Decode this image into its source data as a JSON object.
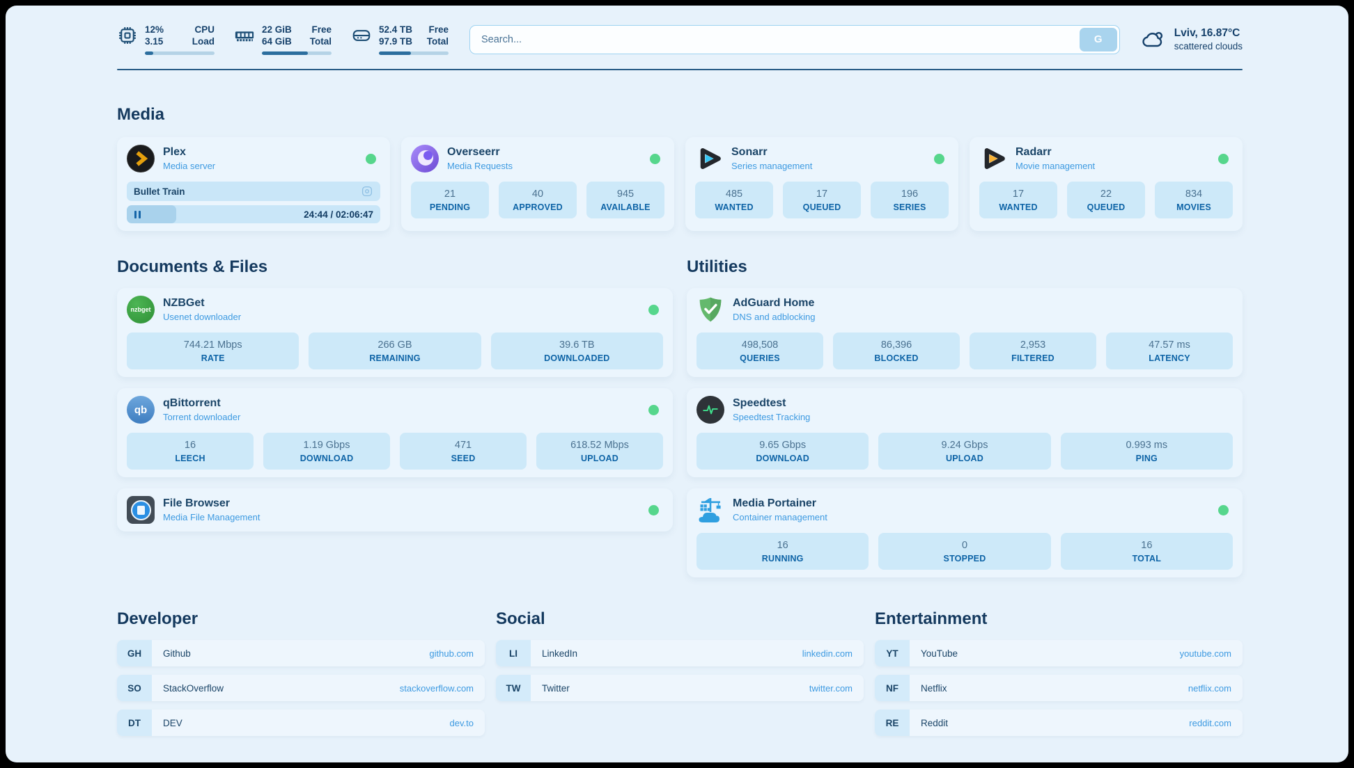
{
  "header": {
    "system": [
      {
        "icon": "cpu-icon",
        "value_top": "12%",
        "value_bottom": "3.15",
        "label_top": "CPU",
        "label_bottom": "Load",
        "progress": 12
      },
      {
        "icon": "ram-icon",
        "value_top": "22 GiB",
        "value_bottom": "64 GiB",
        "label_top": "Free",
        "label_bottom": "Total",
        "progress": 66
      },
      {
        "icon": "disk-icon",
        "value_top": "52.4 TB",
        "value_bottom": "97.9 TB",
        "label_top": "Free",
        "label_bottom": "Total",
        "progress": 46
      }
    ],
    "search": {
      "placeholder": "Search...",
      "button": "G"
    },
    "weather": {
      "summary": "Lviv, 16.87°C",
      "condition": "scattered clouds",
      "icon": "cloud-icon"
    }
  },
  "sections": {
    "media": {
      "title": "Media",
      "apps": [
        {
          "name": "Plex",
          "description": "Media server",
          "icon": "plex-icon",
          "online": true,
          "player": {
            "title": "Bullet Train",
            "time": "24:44 / 02:06:47",
            "progress": 19.5
          }
        },
        {
          "name": "Overseerr",
          "description": "Media Requests",
          "icon": "overseerr-icon",
          "online": true,
          "stats": [
            {
              "value": "21",
              "label": "PENDING"
            },
            {
              "value": "40",
              "label": "APPROVED"
            },
            {
              "value": "945",
              "label": "AVAILABLE"
            }
          ]
        },
        {
          "name": "Sonarr",
          "description": "Series management",
          "icon": "sonarr-icon",
          "online": true,
          "stats": [
            {
              "value": "485",
              "label": "WANTED"
            },
            {
              "value": "17",
              "label": "QUEUED"
            },
            {
              "value": "196",
              "label": "SERIES"
            }
          ]
        },
        {
          "name": "Radarr",
          "description": "Movie management",
          "icon": "radarr-icon",
          "online": true,
          "stats": [
            {
              "value": "17",
              "label": "WANTED"
            },
            {
              "value": "22",
              "label": "QUEUED"
            },
            {
              "value": "834",
              "label": "MOVIES"
            }
          ]
        }
      ]
    },
    "documents": {
      "title": "Documents & Files",
      "apps": [
        {
          "name": "NZBGet",
          "description": "Usenet downloader",
          "icon": "nzbget-icon",
          "icon_text": "nzbget",
          "online": true,
          "stats": [
            {
              "value": "744.21 Mbps",
              "label": "RATE"
            },
            {
              "value": "266 GB",
              "label": "REMAINING"
            },
            {
              "value": "39.6 TB",
              "label": "DOWNLOADED"
            }
          ]
        },
        {
          "name": "qBittorrent",
          "description": "Torrent downloader",
          "icon": "qbittorrent-icon",
          "icon_text": "qb",
          "online": true,
          "stats": [
            {
              "value": "16",
              "label": "LEECH"
            },
            {
              "value": "1.19 Gbps",
              "label": "DOWNLOAD"
            },
            {
              "value": "471",
              "label": "SEED"
            },
            {
              "value": "618.52 Mbps",
              "label": "UPLOAD"
            }
          ]
        },
        {
          "name": "File Browser",
          "description": "Media File Management",
          "icon": "filebrowser-icon",
          "online": true
        }
      ]
    },
    "utilities": {
      "title": "Utilities",
      "apps": [
        {
          "name": "AdGuard Home",
          "description": "DNS and adblocking",
          "icon": "adguard-icon",
          "online": false,
          "stats": [
            {
              "value": "498,508",
              "label": "QUERIES"
            },
            {
              "value": "86,396",
              "label": "BLOCKED"
            },
            {
              "value": "2,953",
              "label": "FILTERED"
            },
            {
              "value": "47.57 ms",
              "label": "LATENCY"
            }
          ]
        },
        {
          "name": "Speedtest",
          "description": "Speedtest Tracking",
          "icon": "speedtest-icon",
          "online": false,
          "stats": [
            {
              "value": "9.65 Gbps",
              "label": "DOWNLOAD"
            },
            {
              "value": "9.24 Gbps",
              "label": "UPLOAD"
            },
            {
              "value": "0.993 ms",
              "label": "PING"
            }
          ]
        },
        {
          "name": "Media Portainer",
          "description": "Container management",
          "icon": "portainer-icon",
          "online": true,
          "stats": [
            {
              "value": "16",
              "label": "RUNNING"
            },
            {
              "value": "0",
              "label": "STOPPED"
            },
            {
              "value": "16",
              "label": "TOTAL"
            }
          ]
        }
      ]
    },
    "bookmarks": [
      {
        "title": "Developer",
        "links": [
          {
            "abbr": "GH",
            "name": "Github",
            "url": "github.com"
          },
          {
            "abbr": "SO",
            "name": "StackOverflow",
            "url": "stackoverflow.com"
          },
          {
            "abbr": "DT",
            "name": "DEV",
            "url": "dev.to"
          }
        ]
      },
      {
        "title": "Social",
        "links": [
          {
            "abbr": "LI",
            "name": "LinkedIn",
            "url": "linkedin.com"
          },
          {
            "abbr": "TW",
            "name": "Twitter",
            "url": "twitter.com"
          }
        ]
      },
      {
        "title": "Entertainment",
        "links": [
          {
            "abbr": "YT",
            "name": "YouTube",
            "url": "youtube.com"
          },
          {
            "abbr": "NF",
            "name": "Netflix",
            "url": "netflix.com"
          },
          {
            "abbr": "RE",
            "name": "Reddit",
            "url": "reddit.com"
          }
        ]
      }
    ]
  },
  "colors": {
    "accent_blue": "#3d9ae1",
    "navy": "#14395e",
    "online_green": "#56d68c",
    "statbox_bg": "#cde9f9"
  }
}
